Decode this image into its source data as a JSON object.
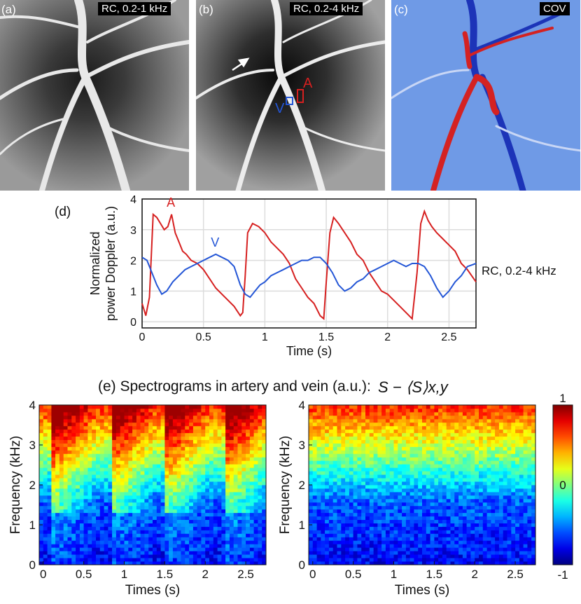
{
  "panels": {
    "a": {
      "label": "(a)",
      "tag": "RC, 0.2-1 kHz"
    },
    "b": {
      "label": "(b)",
      "tag": "RC, 0.2-4 kHz",
      "artery_marker": "A",
      "vein_marker": "V"
    },
    "c": {
      "label": "(c)",
      "tag": "COV"
    }
  },
  "panel_d": {
    "label": "(d)",
    "side_label": "RC, 0.2-4 kHz"
  },
  "panel_e": {
    "title": "(e) Spectrograms in artery and vein (a.u.):",
    "formula": "S − ⟨S⟩x,y"
  },
  "colors": {
    "artery": "#d62020",
    "vein": "#2456d6"
  },
  "chart_data": [
    {
      "type": "line",
      "xlabel": "Time (s)",
      "ylabel": "Normalized power Doppler (a.u.)",
      "ylabel_lines": [
        "Normalized",
        "power Doppler (a.u.)"
      ],
      "xlim": [
        0,
        2.72
      ],
      "ylim": [
        -0.2,
        4.0
      ],
      "xticks": [
        0,
        0.5,
        1,
        1.5,
        2,
        2.5
      ],
      "xtick_labels": [
        "0",
        "0.5",
        "1",
        "1.5",
        "2",
        "2.5"
      ],
      "yticks": [
        0,
        1,
        2,
        3,
        4
      ],
      "grid": true,
      "series": [
        {
          "name": "A",
          "color": "#d62020",
          "x": [
            0,
            0.03,
            0.06,
            0.09,
            0.12,
            0.15,
            0.18,
            0.21,
            0.24,
            0.27,
            0.3,
            0.33,
            0.36,
            0.4,
            0.45,
            0.5,
            0.55,
            0.6,
            0.65,
            0.7,
            0.75,
            0.8,
            0.82,
            0.84,
            0.86,
            0.9,
            0.95,
            1.0,
            1.05,
            1.1,
            1.15,
            1.2,
            1.25,
            1.3,
            1.35,
            1.4,
            1.45,
            1.48,
            1.5,
            1.53,
            1.56,
            1.6,
            1.65,
            1.7,
            1.75,
            1.8,
            1.85,
            1.9,
            1.95,
            2.0,
            2.05,
            2.1,
            2.15,
            2.2,
            2.24,
            2.27,
            2.3,
            2.33,
            2.36,
            2.4,
            2.45,
            2.5,
            2.55,
            2.6,
            2.65,
            2.72
          ],
          "y": [
            0.6,
            0.2,
            0.8,
            3.5,
            3.4,
            3.2,
            3.0,
            3.1,
            3.5,
            2.9,
            2.6,
            2.3,
            2.2,
            2.0,
            1.9,
            1.7,
            1.4,
            1.1,
            0.9,
            0.7,
            0.5,
            0.2,
            0.3,
            1.5,
            2.9,
            3.2,
            3.1,
            2.9,
            2.6,
            2.4,
            2.2,
            1.9,
            1.4,
            1.1,
            0.8,
            0.6,
            0.2,
            0.1,
            1.3,
            2.9,
            3.4,
            3.2,
            2.9,
            2.6,
            2.2,
            2.0,
            1.6,
            1.3,
            1.0,
            0.9,
            0.7,
            0.5,
            0.3,
            0.1,
            1.6,
            3.2,
            3.6,
            3.3,
            3.1,
            2.9,
            2.7,
            2.5,
            2.3,
            1.9,
            1.7,
            1.3
          ]
        },
        {
          "name": "V",
          "color": "#2456d6",
          "x": [
            0,
            0.04,
            0.08,
            0.12,
            0.16,
            0.2,
            0.25,
            0.3,
            0.35,
            0.4,
            0.45,
            0.5,
            0.55,
            0.6,
            0.65,
            0.7,
            0.75,
            0.8,
            0.84,
            0.88,
            0.92,
            0.96,
            1.0,
            1.05,
            1.1,
            1.15,
            1.2,
            1.25,
            1.3,
            1.35,
            1.4,
            1.45,
            1.5,
            1.55,
            1.6,
            1.65,
            1.7,
            1.75,
            1.8,
            1.85,
            1.9,
            1.95,
            2.0,
            2.05,
            2.1,
            2.15,
            2.2,
            2.25,
            2.3,
            2.35,
            2.4,
            2.45,
            2.5,
            2.55,
            2.6,
            2.65,
            2.72
          ],
          "y": [
            2.1,
            2.0,
            1.6,
            1.2,
            0.9,
            1.0,
            1.3,
            1.5,
            1.7,
            1.8,
            1.9,
            2.0,
            2.1,
            2.2,
            2.1,
            2.0,
            1.8,
            1.2,
            0.9,
            0.8,
            1.0,
            1.2,
            1.3,
            1.5,
            1.6,
            1.7,
            1.8,
            1.9,
            2.0,
            2.0,
            2.1,
            2.1,
            1.9,
            1.6,
            1.2,
            1.0,
            1.1,
            1.3,
            1.4,
            1.6,
            1.7,
            1.8,
            1.9,
            2.0,
            1.9,
            1.8,
            1.9,
            1.9,
            1.8,
            1.5,
            1.1,
            0.8,
            1.0,
            1.3,
            1.5,
            1.8,
            1.9
          ]
        }
      ]
    },
    {
      "type": "heatmap",
      "name": "artery spectrogram",
      "xlabel": "Times (s)",
      "ylabel": "Frequency (kHz)",
      "xlim": [
        -0.05,
        2.75
      ],
      "ylim": [
        0,
        4
      ],
      "xticks": [
        0,
        0.5,
        1,
        1.5,
        2,
        2.5
      ],
      "xtick_labels": [
        "0",
        "0.5",
        "1",
        "1.5",
        "2",
        "2.5"
      ],
      "yticks": [
        0,
        1,
        2,
        3,
        4
      ],
      "ytick_labels": [
        "0",
        "1",
        "2",
        "3",
        "4"
      ],
      "systole_times": [
        0.12,
        0.85,
        1.5,
        2.25
      ]
    },
    {
      "type": "heatmap",
      "name": "vein spectrogram",
      "xlabel": "Times (s)",
      "ylabel": "Frequency (kHz)",
      "xlim": [
        -0.05,
        2.75
      ],
      "ylim": [
        0,
        4
      ],
      "xticks": [
        0,
        0.5,
        1,
        1.5,
        2,
        2.5
      ],
      "xtick_labels": [
        "0",
        "0.5",
        "1",
        "1.5",
        "2",
        "2.5"
      ],
      "yticks": [
        0,
        1,
        2,
        3,
        4
      ],
      "ytick_labels": [
        "0",
        "1",
        "2",
        "3",
        "4"
      ],
      "colorbar": {
        "ticks": [
          1,
          0,
          -1
        ],
        "tick_labels": [
          "1",
          "0",
          "-1"
        ]
      }
    }
  ]
}
